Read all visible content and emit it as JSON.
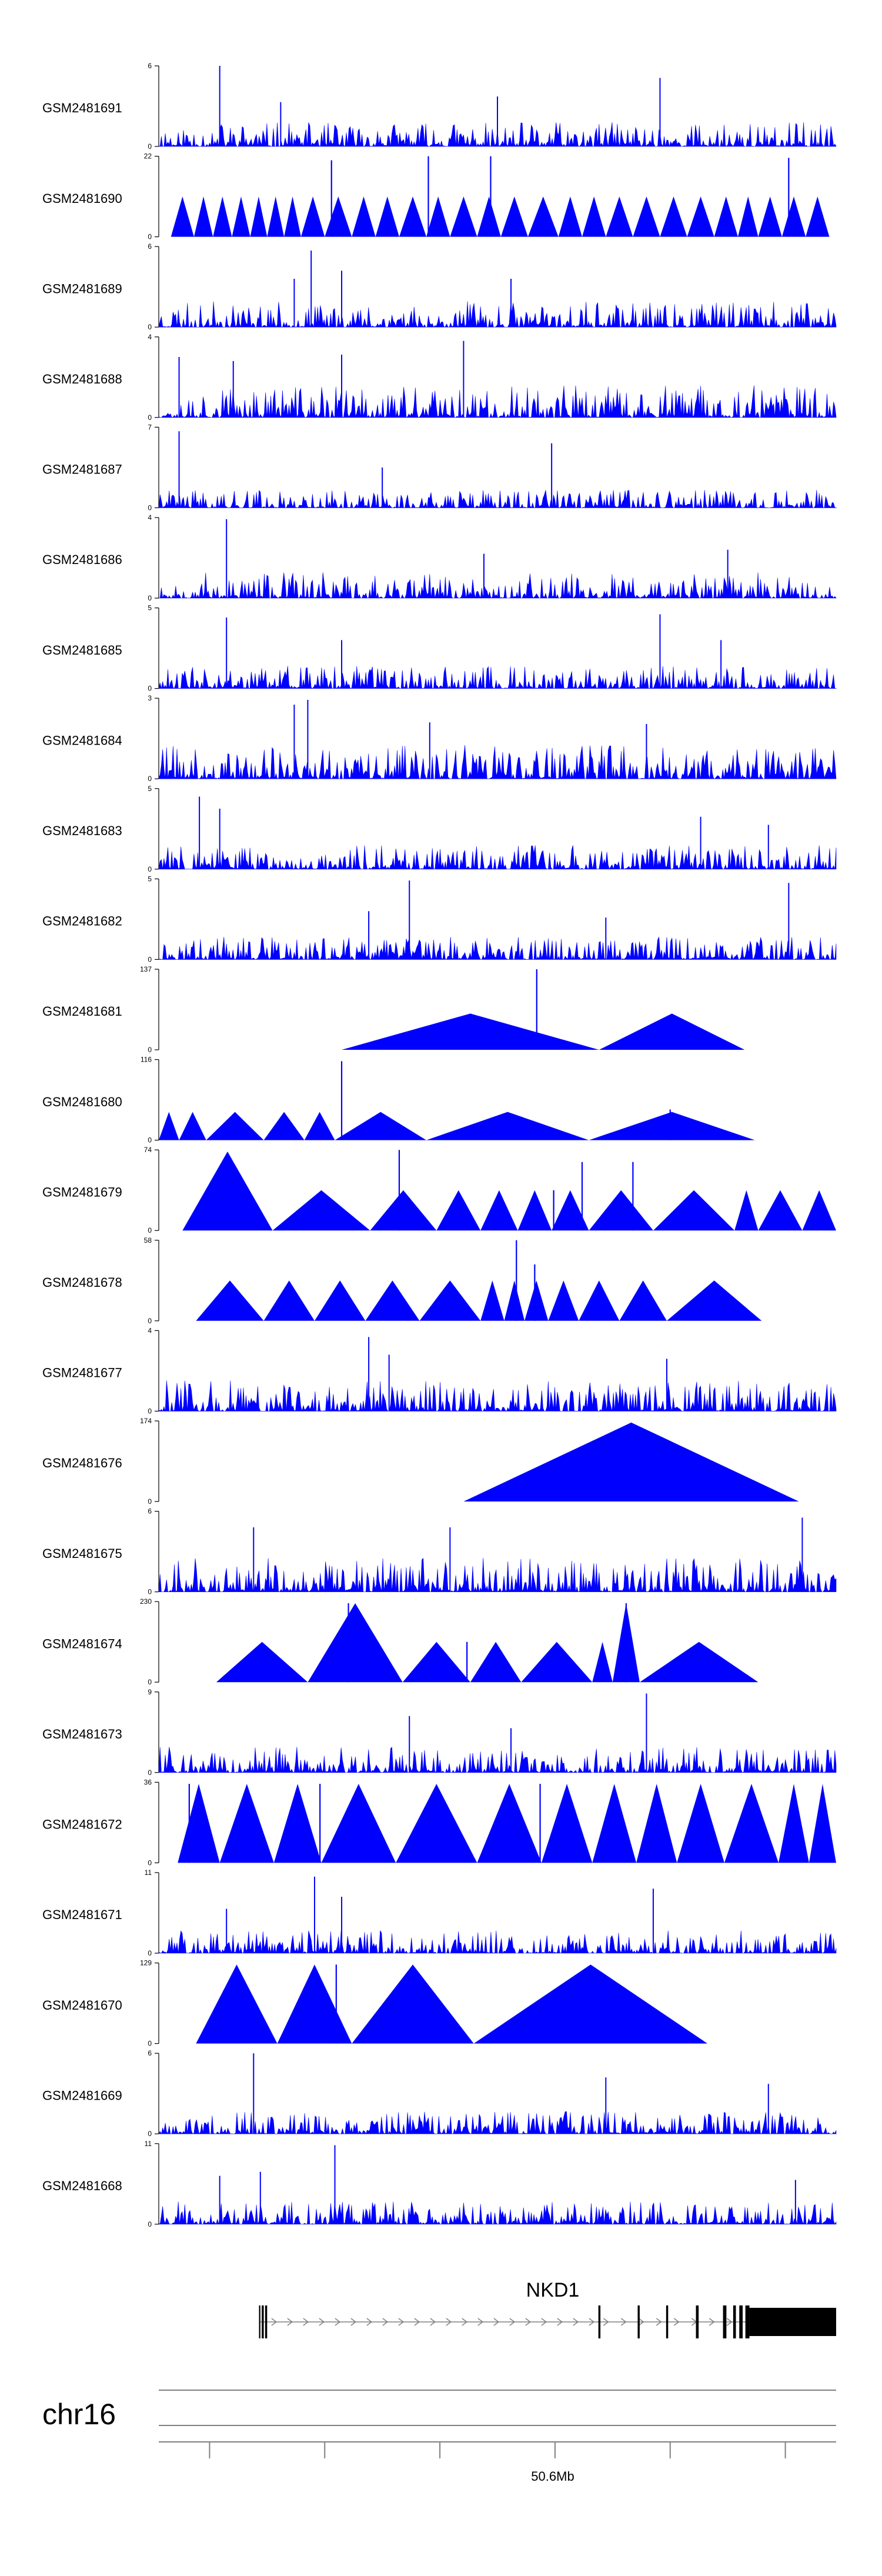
{
  "chart_data": {
    "type": "area",
    "chromosome": "chr16",
    "x_tick_label": "50.6Mb",
    "colors": {
      "signal": "#0000ff",
      "axis": "#000000",
      "gene": "#000000",
      "intron": "#808080",
      "ideogram": "#808080"
    },
    "gene": {
      "name": "NKD1",
      "intron_arrow_direction": "right",
      "exons": [
        [
          0.148,
          0.15
        ],
        [
          0.152,
          0.155
        ],
        [
          0.157,
          0.16
        ],
        [
          0.649,
          0.652
        ],
        [
          0.707,
          0.71
        ],
        [
          0.749,
          0.752
        ],
        [
          0.793,
          0.797
        ],
        [
          0.833,
          0.838
        ],
        [
          0.848,
          0.852
        ],
        [
          0.857,
          0.862
        ],
        [
          0.866,
          0.872
        ]
      ],
      "utr_block": [
        0.872,
        1.0
      ]
    },
    "tracks": [
      {
        "name": "GSM2481691",
        "ymin": "0",
        "ymax": "6",
        "style": "dense",
        "seed": 11,
        "scale": 0.3,
        "spikes": [
          [
            0.09,
            1.0
          ],
          [
            0.74,
            0.85
          ],
          [
            0.18,
            0.55
          ],
          [
            0.5,
            0.62
          ]
        ]
      },
      {
        "name": "GSM2481690",
        "ymin": "0",
        "ymax": "22",
        "style": "tri",
        "triangles": [
          [
            0.018,
            0.052,
            0.5
          ],
          [
            0.052,
            0.08,
            0.5
          ],
          [
            0.08,
            0.108,
            0.5
          ],
          [
            0.108,
            0.135,
            0.5
          ],
          [
            0.135,
            0.16,
            0.5
          ],
          [
            0.16,
            0.185,
            0.5
          ],
          [
            0.185,
            0.21,
            0.5
          ],
          [
            0.21,
            0.245,
            0.5
          ],
          [
            0.245,
            0.285,
            0.5
          ],
          [
            0.285,
            0.32,
            0.5
          ],
          [
            0.32,
            0.355,
            0.5
          ],
          [
            0.355,
            0.395,
            0.5
          ],
          [
            0.395,
            0.43,
            0.5
          ],
          [
            0.43,
            0.47,
            0.5
          ],
          [
            0.47,
            0.505,
            0.5
          ],
          [
            0.505,
            0.545,
            0.5
          ],
          [
            0.545,
            0.59,
            0.5
          ],
          [
            0.59,
            0.625,
            0.5
          ],
          [
            0.625,
            0.66,
            0.5
          ],
          [
            0.66,
            0.7,
            0.5
          ],
          [
            0.7,
            0.74,
            0.5
          ],
          [
            0.74,
            0.78,
            0.5
          ],
          [
            0.78,
            0.82,
            0.5
          ],
          [
            0.82,
            0.855,
            0.5
          ],
          [
            0.855,
            0.885,
            0.5
          ],
          [
            0.885,
            0.92,
            0.5
          ],
          [
            0.92,
            0.955,
            0.5
          ],
          [
            0.955,
            0.99,
            0.5
          ]
        ],
        "peaks": [
          [
            0.398,
            1.0
          ],
          [
            0.49,
            1.0
          ],
          [
            0.255,
            0.95
          ],
          [
            0.93,
            0.98
          ]
        ]
      },
      {
        "name": "GSM2481689",
        "ymin": "0",
        "ymax": "6",
        "style": "dense",
        "seed": 23,
        "scale": 0.32,
        "spikes": [
          [
            0.225,
            0.95
          ],
          [
            0.2,
            0.6
          ],
          [
            0.27,
            0.7
          ],
          [
            0.52,
            0.6
          ]
        ]
      },
      {
        "name": "GSM2481688",
        "ymin": "0",
        "ymax": "4",
        "style": "dense",
        "seed": 37,
        "scale": 0.4,
        "spikes": [
          [
            0.45,
            0.95
          ],
          [
            0.27,
            0.78
          ],
          [
            0.11,
            0.7
          ],
          [
            0.03,
            0.75
          ]
        ]
      },
      {
        "name": "GSM2481687",
        "ymin": "0",
        "ymax": "7",
        "style": "dense",
        "seed": 41,
        "scale": 0.22,
        "spikes": [
          [
            0.03,
            0.95
          ],
          [
            0.58,
            0.8
          ],
          [
            0.33,
            0.5
          ]
        ]
      },
      {
        "name": "GSM2481686",
        "ymin": "0",
        "ymax": "4",
        "style": "dense",
        "seed": 53,
        "scale": 0.32,
        "spikes": [
          [
            0.1,
            0.98
          ],
          [
            0.48,
            0.55
          ],
          [
            0.84,
            0.6
          ]
        ]
      },
      {
        "name": "GSM2481685",
        "ymin": "0",
        "ymax": "5",
        "style": "dense",
        "seed": 61,
        "scale": 0.28,
        "spikes": [
          [
            0.1,
            0.88
          ],
          [
            0.74,
            0.92
          ],
          [
            0.27,
            0.6
          ],
          [
            0.83,
            0.6
          ]
        ]
      },
      {
        "name": "GSM2481684",
        "ymin": "0",
        "ymax": "3",
        "style": "dense",
        "seed": 71,
        "scale": 0.42,
        "spikes": [
          [
            0.2,
            0.92
          ],
          [
            0.22,
            0.98
          ],
          [
            0.4,
            0.7
          ],
          [
            0.72,
            0.68
          ]
        ]
      },
      {
        "name": "GSM2481683",
        "ymin": "0",
        "ymax": "5",
        "style": "dense",
        "seed": 83,
        "scale": 0.3,
        "spikes": [
          [
            0.06,
            0.9
          ],
          [
            0.09,
            0.75
          ],
          [
            0.8,
            0.65
          ],
          [
            0.9,
            0.55
          ]
        ]
      },
      {
        "name": "GSM2481682",
        "ymin": "0",
        "ymax": "5",
        "style": "dense",
        "seed": 97,
        "scale": 0.28,
        "spikes": [
          [
            0.37,
            0.98
          ],
          [
            0.93,
            0.95
          ],
          [
            0.31,
            0.6
          ],
          [
            0.66,
            0.52
          ]
        ]
      },
      {
        "name": "GSM2481681",
        "ymin": "0",
        "ymax": "137",
        "style": "tri",
        "triangles": [
          [
            0.27,
            0.65,
            0.45
          ],
          [
            0.65,
            0.865,
            0.45
          ]
        ],
        "peaks": [
          [
            0.558,
            1.0
          ]
        ]
      },
      {
        "name": "GSM2481680",
        "ymin": "0",
        "ymax": "116",
        "style": "tri",
        "triangles": [
          [
            0.0,
            0.03,
            0.35
          ],
          [
            0.03,
            0.07,
            0.35
          ],
          [
            0.07,
            0.155,
            0.35
          ],
          [
            0.155,
            0.215,
            0.35
          ],
          [
            0.215,
            0.26,
            0.35
          ],
          [
            0.26,
            0.395,
            0.35
          ],
          [
            0.395,
            0.635,
            0.35
          ],
          [
            0.635,
            0.88,
            0.35
          ]
        ],
        "peaks": [
          [
            0.27,
            0.98
          ],
          [
            0.755,
            0.38
          ]
        ]
      },
      {
        "name": "GSM2481679",
        "ymin": "0",
        "ymax": "74",
        "style": "tri",
        "triangles": [
          [
            0.035,
            0.168,
            0.98
          ],
          [
            0.168,
            0.312,
            0.5
          ],
          [
            0.312,
            0.41,
            0.5
          ],
          [
            0.41,
            0.475,
            0.5
          ],
          [
            0.475,
            0.53,
            0.5
          ],
          [
            0.53,
            0.58,
            0.5
          ],
          [
            0.58,
            0.635,
            0.5
          ],
          [
            0.635,
            0.73,
            0.5
          ],
          [
            0.73,
            0.85,
            0.5
          ],
          [
            0.85,
            0.885,
            0.5
          ],
          [
            0.885,
            0.95,
            0.5
          ],
          [
            0.95,
            1.0,
            0.5
          ]
        ],
        "peaks": [
          [
            0.355,
            1.0
          ],
          [
            0.625,
            0.85
          ],
          [
            0.7,
            0.85
          ],
          [
            0.583,
            0.5
          ]
        ]
      },
      {
        "name": "GSM2481678",
        "ymin": "0",
        "ymax": "58",
        "style": "tri",
        "triangles": [
          [
            0.055,
            0.155,
            0.5
          ],
          [
            0.155,
            0.23,
            0.5
          ],
          [
            0.23,
            0.305,
            0.5
          ],
          [
            0.305,
            0.385,
            0.5
          ],
          [
            0.385,
            0.475,
            0.5
          ],
          [
            0.475,
            0.51,
            0.5
          ],
          [
            0.51,
            0.54,
            0.5
          ],
          [
            0.54,
            0.575,
            0.5
          ],
          [
            0.575,
            0.62,
            0.5
          ],
          [
            0.62,
            0.68,
            0.5
          ],
          [
            0.68,
            0.75,
            0.5
          ],
          [
            0.75,
            0.89,
            0.5
          ]
        ],
        "peaks": [
          [
            0.528,
            1.0
          ],
          [
            0.555,
            0.7
          ]
        ]
      },
      {
        "name": "GSM2481677",
        "ymin": "0",
        "ymax": "4",
        "style": "dense",
        "seed": 113,
        "scale": 0.38,
        "spikes": [
          [
            0.31,
            0.92
          ],
          [
            0.34,
            0.7
          ],
          [
            0.75,
            0.65
          ]
        ]
      },
      {
        "name": "GSM2481676",
        "ymin": "0",
        "ymax": "174",
        "style": "tri",
        "triangles": [
          [
            0.45,
            0.945,
            0.98
          ]
        ],
        "peaks": []
      },
      {
        "name": "GSM2481675",
        "ymin": "0",
        "ymax": "6",
        "style": "dense",
        "seed": 127,
        "scale": 0.42,
        "spikes": [
          [
            0.95,
            0.92
          ],
          [
            0.14,
            0.8
          ],
          [
            0.43,
            0.8
          ]
        ]
      },
      {
        "name": "GSM2481674",
        "ymin": "0",
        "ymax": "230",
        "style": "tri",
        "triangles": [
          [
            0.085,
            0.22,
            0.5
          ],
          [
            0.22,
            0.36,
            0.98
          ],
          [
            0.36,
            0.46,
            0.5
          ],
          [
            0.46,
            0.535,
            0.5
          ],
          [
            0.535,
            0.64,
            0.5
          ],
          [
            0.64,
            0.67,
            0.5
          ],
          [
            0.67,
            0.71,
            0.98
          ],
          [
            0.71,
            0.885,
            0.5
          ]
        ],
        "peaks": [
          [
            0.28,
            0.98
          ],
          [
            0.69,
            0.98
          ],
          [
            0.455,
            0.5
          ]
        ]
      },
      {
        "name": "GSM2481673",
        "ymin": "0",
        "ymax": "9",
        "style": "dense",
        "seed": 139,
        "scale": 0.32,
        "spikes": [
          [
            0.72,
            0.98
          ],
          [
            0.37,
            0.7
          ],
          [
            0.52,
            0.55
          ]
        ]
      },
      {
        "name": "GSM2481672",
        "ymin": "0",
        "ymax": "36",
        "style": "tri",
        "triangles": [
          [
            0.028,
            0.09,
            0.98
          ],
          [
            0.09,
            0.17,
            0.98
          ],
          [
            0.17,
            0.24,
            0.98
          ],
          [
            0.24,
            0.35,
            0.98
          ],
          [
            0.35,
            0.47,
            0.98
          ],
          [
            0.47,
            0.565,
            0.98
          ],
          [
            0.565,
            0.64,
            0.98
          ],
          [
            0.64,
            0.705,
            0.98
          ],
          [
            0.705,
            0.765,
            0.98
          ],
          [
            0.765,
            0.835,
            0.98
          ],
          [
            0.835,
            0.915,
            0.98
          ],
          [
            0.915,
            0.96,
            0.98
          ],
          [
            0.96,
            1.0,
            0.98
          ]
        ],
        "peaks": [
          [
            0.045,
            0.98
          ],
          [
            0.238,
            0.98
          ],
          [
            0.563,
            0.98
          ]
        ]
      },
      {
        "name": "GSM2481671",
        "ymin": "0",
        "ymax": "11",
        "style": "dense",
        "seed": 151,
        "scale": 0.28,
        "spikes": [
          [
            0.23,
            0.95
          ],
          [
            0.27,
            0.7
          ],
          [
            0.73,
            0.8
          ],
          [
            0.1,
            0.55
          ]
        ]
      },
      {
        "name": "GSM2481670",
        "ymin": "0",
        "ymax": "129",
        "style": "tri",
        "triangles": [
          [
            0.055,
            0.175,
            0.98
          ],
          [
            0.175,
            0.285,
            0.98
          ],
          [
            0.285,
            0.465,
            0.98
          ],
          [
            0.465,
            0.81,
            0.98
          ]
        ],
        "peaks": [
          [
            0.262,
            0.98
          ]
        ]
      },
      {
        "name": "GSM2481669",
        "ymin": "0",
        "ymax": "6",
        "style": "dense",
        "seed": 163,
        "scale": 0.28,
        "spikes": [
          [
            0.14,
            1.0
          ],
          [
            0.66,
            0.7
          ],
          [
            0.9,
            0.62
          ]
        ]
      },
      {
        "name": "GSM2481668",
        "ymin": "0",
        "ymax": "11",
        "style": "dense",
        "seed": 173,
        "scale": 0.28,
        "spikes": [
          [
            0.26,
            0.98
          ],
          [
            0.15,
            0.65
          ],
          [
            0.09,
            0.6
          ],
          [
            0.94,
            0.55
          ]
        ]
      }
    ]
  }
}
